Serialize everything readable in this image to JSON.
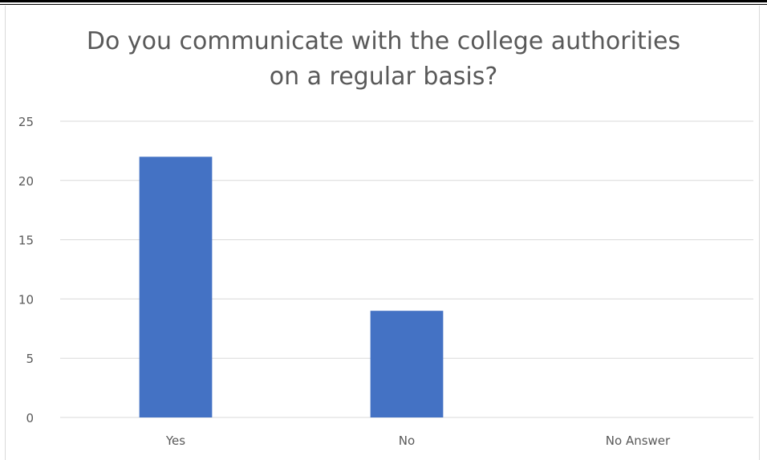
{
  "chart_data": {
    "type": "bar",
    "title_lines": [
      "Do you communicate with the college authorities",
      "on a regular basis?"
    ],
    "categories": [
      "Yes",
      "No",
      "No Answer"
    ],
    "values": [
      22,
      9,
      0
    ],
    "ylim": [
      0,
      25
    ],
    "yticks": [
      0,
      5,
      10,
      15,
      20,
      25
    ],
    "bar_color": "#4472c4",
    "grid": true,
    "legend": "none"
  }
}
